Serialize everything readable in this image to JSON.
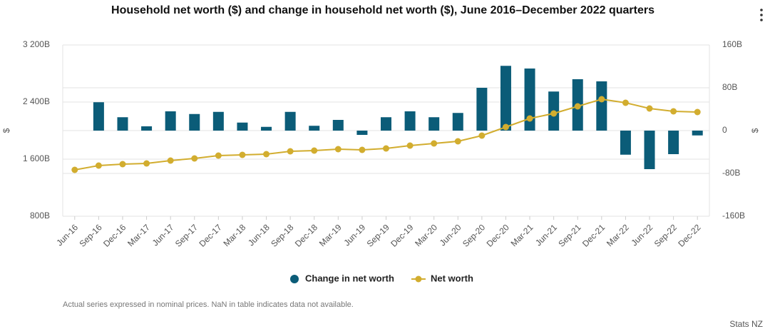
{
  "chart_data": {
    "type": "bar_line",
    "title": "Household net worth ($) and change in household net worth ($), June 2016–December 2022 quarters",
    "categories": [
      "Jun-16",
      "Sep-16",
      "Dec-16",
      "Mar-17",
      "Jun-17",
      "Sep-17",
      "Dec-17",
      "Mar-18",
      "Jun-18",
      "Sep-18",
      "Dec-18",
      "Mar-19",
      "Jun-19",
      "Sep-19",
      "Dec-19",
      "Mar-20",
      "Jun-20",
      "Sep-20",
      "Dec-20",
      "Mar-21",
      "Jun-21",
      "Sep-21",
      "Dec-21",
      "Mar-22",
      "Jun-22",
      "Sep-22",
      "Dec-22"
    ],
    "series": [
      {
        "name": "Change in net worth",
        "type": "bar",
        "axis": "y2",
        "color": "#0b5c78",
        "values": [
          null,
          53,
          25,
          8,
          36,
          31,
          35,
          15,
          7,
          35,
          9,
          20,
          -8,
          25,
          36,
          25,
          33,
          80,
          121,
          116,
          73,
          96,
          92,
          -45,
          -72,
          -44,
          -9
        ]
      },
      {
        "name": "Net worth",
        "type": "line",
        "axis": "y",
        "color": "#d2ad2f",
        "values": [
          1450,
          1510,
          1530,
          1540,
          1580,
          1610,
          1650,
          1660,
          1670,
          1710,
          1720,
          1740,
          1730,
          1750,
          1790,
          1820,
          1850,
          1930,
          2050,
          2170,
          2240,
          2340,
          2440,
          2390,
          2310,
          2270,
          2260
        ]
      }
    ],
    "y_label": "$",
    "y2_label": "$",
    "ylim": [
      800,
      3200
    ],
    "yticks": [
      {
        "value": 800,
        "label": "800B"
      },
      {
        "value": 1600,
        "label": "1 600B"
      },
      {
        "value": 2400,
        "label": "2 400B"
      },
      {
        "value": 3200,
        "label": "3 200B"
      }
    ],
    "y2lim": [
      -160,
      160
    ],
    "y2ticks": [
      {
        "value": -160,
        "label": "-160B"
      },
      {
        "value": -80,
        "label": "-80B"
      },
      0,
      {
        "value": 80,
        "label": "80B"
      },
      {
        "value": 160,
        "label": "160B"
      }
    ],
    "grid": true,
    "legend": "bottom",
    "footnote": "Actual series expressed in nominal prices. NaN in table indicates data not available.",
    "source": "Stats NZ"
  }
}
